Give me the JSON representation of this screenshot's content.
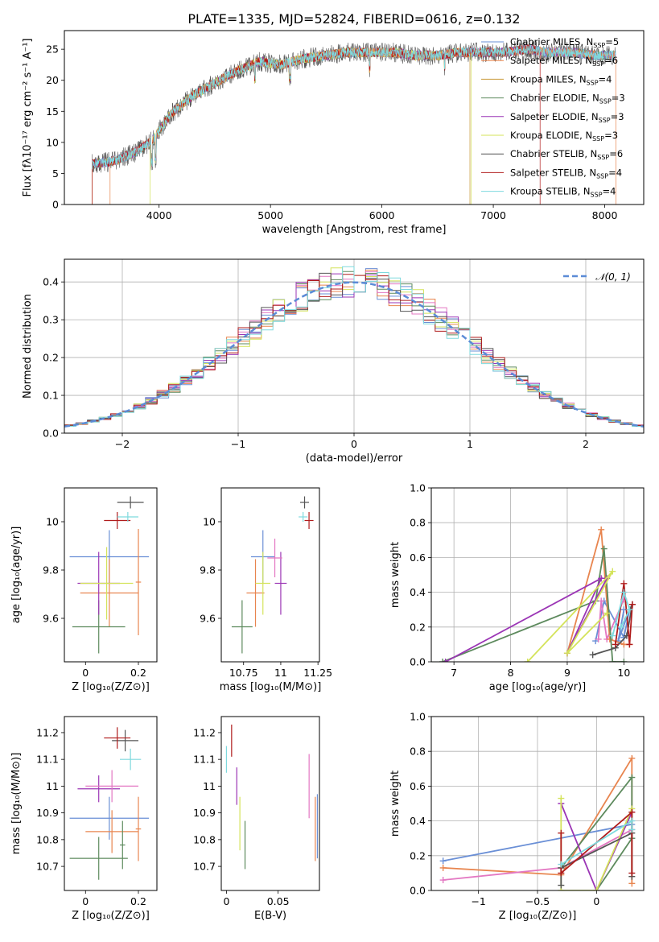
{
  "figure_title": "PLATE=1335, MJD=52824, FIBERID=0616, z=0.132",
  "colors": {
    "grid": "#b0b0b0",
    "ref_curve": "#5b8bd6"
  },
  "series_labels": [
    {
      "name": "Chabrier MILES",
      "n": "5",
      "color": "#6a8fd6"
    },
    {
      "name": "Salpeter MILES",
      "n": "6",
      "color": "#e8854f"
    },
    {
      "name": "Kroupa MILES",
      "n": "4",
      "color": "#c99a3a"
    },
    {
      "name": "Chabrier ELODIE",
      "n": "3",
      "color": "#5d8a5d"
    },
    {
      "name": "Salpeter ELODIE",
      "n": "3",
      "color": "#9b35b5"
    },
    {
      "name": "Kroupa ELODIE",
      "n": "3",
      "color": "#d4e35a"
    },
    {
      "name": "Chabrier STELIB",
      "n": "6",
      "color": "#555555"
    },
    {
      "name": "Salpeter STELIB",
      "n": "4",
      "color": "#b01c1c"
    },
    {
      "name": "Kroupa STELIB",
      "n": "4",
      "color": "#7ed9de"
    }
  ],
  "chart_data": [
    {
      "id": "spectrum",
      "type": "line",
      "xlabel": "wavelength [Angstrom, rest frame]",
      "ylabel": "Flux [fλ10⁻¹⁷ erg cm⁻² s⁻¹ A⁻¹]",
      "xlim": [
        3150,
        8350
      ],
      "ylim": [
        0,
        28
      ],
      "xticks": [
        4000,
        5000,
        6000,
        7000,
        8000
      ],
      "yticks": [
        0,
        5,
        10,
        15,
        20,
        25
      ],
      "legend_position": "top-right",
      "envelope": {
        "x": [
          3400,
          3600,
          3800,
          3950,
          4100,
          4300,
          4500,
          4700,
          4900,
          5100,
          5300,
          5500,
          5700,
          5900,
          6100,
          6300,
          6500,
          6700,
          6900,
          7100,
          7300,
          7500,
          7700,
          7900,
          8100
        ],
        "y": [
          6.5,
          7.0,
          8.5,
          10.5,
          14.5,
          17.5,
          19.5,
          21.5,
          23,
          22.5,
          23.5,
          24,
          24.5,
          24.5,
          24.5,
          24,
          24,
          24.5,
          24.5,
          24.5,
          25,
          24.5,
          24.5,
          24,
          24
        ]
      },
      "fit_ranges": [
        {
          "series": "Salpeter MILES",
          "start": 3560,
          "end": 8100
        },
        {
          "series": "Kroupa ELODIE",
          "start": 3920,
          "end": 6800
        },
        {
          "series": "Salpeter STELIB",
          "start": 3400,
          "end": 7420
        },
        {
          "series": "Kroupa MILES",
          "start": 3400,
          "end": 6790
        }
      ]
    },
    {
      "id": "residual-histogram",
      "type": "histogram",
      "xlabel": "(data-model)/error",
      "ylabel": "Normed distribution",
      "xlim": [
        -2.5,
        2.5
      ],
      "ylim": [
        0,
        0.46
      ],
      "xticks": [
        -2,
        -1,
        0,
        1,
        2
      ],
      "yticks": [
        0.0,
        0.1,
        0.2,
        0.3,
        0.4
      ],
      "bin_width": 0.1,
      "grid": true,
      "reference_label": "𝒩(0, 1)",
      "legend_position": "top-right"
    },
    {
      "id": "age-vs-z",
      "type": "errorbar",
      "xlabel": "Z [log₁₀(Z/Z⊙)]",
      "ylabel": "age  [log₁₀(age/yr)]",
      "xlim": [
        -0.08,
        0.27
      ],
      "ylim": [
        9.42,
        10.14
      ],
      "xticks": [
        0.0,
        0.2
      ],
      "yticks": [
        9.6,
        9.8,
        10.0
      ],
      "points": [
        {
          "x": 0.09,
          "xerr": 0.15,
          "y": 9.855,
          "yerr": 0.11,
          "color": "#6a8fd6"
        },
        {
          "x": 0.09,
          "xerr": 0.11,
          "y": 9.705,
          "yerr": 0.14,
          "color": "#e8854f"
        },
        {
          "x": 0.2,
          "xerr": 0.01,
          "y": 9.75,
          "yerr": 0.22,
          "color": "#e8854f"
        },
        {
          "x": 0.05,
          "xerr": 0.1,
          "y": 9.565,
          "yerr": 0.11,
          "color": "#5d8a5d"
        },
        {
          "x": 0.05,
          "xerr": 0.08,
          "y": 9.745,
          "yerr": 0.13,
          "color": "#9b35b5"
        },
        {
          "x": 0.08,
          "xerr": 0.1,
          "y": 9.745,
          "yerr": 0.15,
          "color": "#d4e35a"
        },
        {
          "x": 0.17,
          "xerr": 0.05,
          "y": 10.08,
          "yerr": 0.025,
          "color": "#555555"
        },
        {
          "x": 0.12,
          "xerr": 0.05,
          "y": 10.005,
          "yerr": 0.035,
          "color": "#b01c1c"
        },
        {
          "x": 0.16,
          "xerr": 0.04,
          "y": 10.02,
          "yerr": 0.02,
          "color": "#7ed9de"
        }
      ]
    },
    {
      "id": "age-vs-mass",
      "type": "errorbar",
      "xlabel": "mass [log₁₀(M/M⊙)]",
      "ylabel": "",
      "xlim": [
        10.6,
        11.26
      ],
      "ylim": [
        9.42,
        10.14
      ],
      "xticks": [
        10.75,
        11.0,
        11.25
      ],
      "yticks": [
        9.6,
        9.8,
        10.0
      ],
      "points": [
        {
          "x": 10.88,
          "xerr": 0.08,
          "y": 9.855,
          "yerr": 0.11,
          "color": "#6a8fd6"
        },
        {
          "x": 10.83,
          "xerr": 0.06,
          "y": 9.705,
          "yerr": 0.14,
          "color": "#e8854f"
        },
        {
          "x": 10.74,
          "xerr": 0.07,
          "y": 9.565,
          "yerr": 0.11,
          "color": "#5d8a5d"
        },
        {
          "x": 11.0,
          "xerr": 0.04,
          "y": 9.745,
          "yerr": 0.13,
          "color": "#9b35b5"
        },
        {
          "x": 10.88,
          "xerr": 0.05,
          "y": 9.745,
          "yerr": 0.13,
          "color": "#d4e35a"
        },
        {
          "x": 10.96,
          "xerr": 0.05,
          "y": 9.85,
          "yerr": 0.08,
          "color": "#e377c2"
        },
        {
          "x": 11.16,
          "xerr": 0.03,
          "y": 10.08,
          "yerr": 0.025,
          "color": "#555555"
        },
        {
          "x": 11.19,
          "xerr": 0.03,
          "y": 10.005,
          "yerr": 0.035,
          "color": "#b01c1c"
        },
        {
          "x": 11.15,
          "xerr": 0.03,
          "y": 10.02,
          "yerr": 0.02,
          "color": "#7ed9de"
        }
      ]
    },
    {
      "id": "weight-vs-age",
      "type": "line",
      "xlabel": "age  [log₁₀(age/yr)]",
      "ylabel": "mass weight",
      "xlim": [
        6.6,
        10.35
      ],
      "ylim": [
        0,
        1.0
      ],
      "xticks": [
        7,
        8,
        9,
        10
      ],
      "yticks": [
        0.0,
        0.2,
        0.4,
        0.6,
        0.8,
        1.0
      ],
      "grid": true,
      "series": [
        {
          "color": "#6a8fd6",
          "x": [
            9.5,
            9.65,
            10.0,
            10.1,
            9.9,
            10.0
          ],
          "y": [
            0.12,
            0.35,
            0.14,
            0.3,
            0.12,
            0.3
          ]
        },
        {
          "color": "#e377c2",
          "x": [
            9.55,
            9.6,
            9.7,
            10.0
          ],
          "y": [
            0.13,
            0.35,
            0.13,
            0.36
          ]
        },
        {
          "color": "#e8854f",
          "x": [
            9.0,
            9.6,
            9.75,
            10.0,
            10.1
          ],
          "y": [
            0.05,
            0.76,
            0.13,
            0.1,
            0.1
          ]
        },
        {
          "color": "#5d8a5d",
          "x": [
            6.8,
            9.5,
            9.65,
            9.8,
            10.0
          ],
          "y": [
            0.0,
            0.35,
            0.65,
            0.0,
            0.0
          ]
        },
        {
          "color": "#9b35b5",
          "x": [
            6.85,
            9.6,
            9.0,
            9.7
          ],
          "y": [
            0.0,
            0.48,
            0.05,
            0.48
          ]
        },
        {
          "color": "#d4e35a",
          "x": [
            8.3,
            9.8,
            9.0,
            9.7
          ],
          "y": [
            0.0,
            0.52,
            0.05,
            0.28
          ]
        },
        {
          "color": "#555555",
          "x": [
            9.45,
            9.85,
            10.05,
            10.15,
            10.1
          ],
          "y": [
            0.04,
            0.08,
            0.15,
            0.33,
            0.3
          ]
        },
        {
          "color": "#b01c1c",
          "x": [
            9.85,
            10.0,
            10.1,
            10.15
          ],
          "y": [
            0.1,
            0.45,
            0.1,
            0.33
          ]
        },
        {
          "color": "#7ed9de",
          "x": [
            9.8,
            10.0,
            10.1,
            9.95
          ],
          "y": [
            0.15,
            0.4,
            0.3,
            0.2
          ]
        }
      ]
    },
    {
      "id": "mass-vs-z",
      "type": "errorbar",
      "xlabel": "Z [log₁₀(Z/Z⊙)]",
      "ylabel": "mass [log₁₀(M/M⊙)]",
      "xlim": [
        -0.08,
        0.27
      ],
      "ylim": [
        10.61,
        11.26
      ],
      "xticks": [
        0.0,
        0.2
      ],
      "yticks": [
        10.7,
        10.8,
        10.9,
        11.0,
        11.1,
        11.2
      ],
      "points": [
        {
          "x": 0.09,
          "xerr": 0.15,
          "y": 10.88,
          "yerr": 0.08,
          "color": "#6a8fd6"
        },
        {
          "x": 0.1,
          "xerr": 0.1,
          "y": 10.83,
          "yerr": 0.08,
          "color": "#e8854f"
        },
        {
          "x": 0.2,
          "xerr": 0.01,
          "y": 10.84,
          "yerr": 0.12,
          "color": "#e8854f"
        },
        {
          "x": 0.05,
          "xerr": 0.11,
          "y": 10.73,
          "yerr": 0.08,
          "color": "#5d8a5d"
        },
        {
          "x": 0.14,
          "xerr": 0.01,
          "y": 10.78,
          "yerr": 0.09,
          "color": "#5d8a5d"
        },
        {
          "x": 0.05,
          "xerr": 0.08,
          "y": 10.99,
          "yerr": 0.05,
          "color": "#9b35b5"
        },
        {
          "x": 0.1,
          "xerr": 0.1,
          "y": 11.0,
          "yerr": 0.06,
          "color": "#e377c2"
        },
        {
          "x": 0.15,
          "xerr": 0.05,
          "y": 11.17,
          "yerr": 0.04,
          "color": "#555555"
        },
        {
          "x": 0.12,
          "xerr": 0.05,
          "y": 11.18,
          "yerr": 0.04,
          "color": "#b01c1c"
        },
        {
          "x": 0.17,
          "xerr": 0.04,
          "y": 11.1,
          "yerr": 0.04,
          "color": "#7ed9de"
        }
      ]
    },
    {
      "id": "mass-vs-ebv",
      "type": "errorbar",
      "xlabel": "E(B-V)",
      "ylabel": "",
      "xlim": [
        -0.005,
        0.09
      ],
      "ylim": [
        10.61,
        11.26
      ],
      "xticks": [
        0.0,
        0.05
      ],
      "yticks": [
        10.7,
        10.8,
        10.9,
        11.0,
        11.1,
        11.2
      ],
      "points": [
        {
          "x": 0.0,
          "y": 11.1,
          "yerr": 0.05,
          "color": "#7ed9de"
        },
        {
          "x": 0.005,
          "y": 11.17,
          "yerr": 0.06,
          "color": "#b01c1c"
        },
        {
          "x": 0.01,
          "y": 11.0,
          "yerr": 0.07,
          "color": "#9b35b5"
        },
        {
          "x": 0.013,
          "y": 10.86,
          "yerr": 0.1,
          "color": "#d4e35a"
        },
        {
          "x": 0.018,
          "y": 10.78,
          "yerr": 0.09,
          "color": "#5d8a5d"
        },
        {
          "x": 0.08,
          "y": 11.0,
          "yerr": 0.12,
          "color": "#e377c2"
        },
        {
          "x": 0.086,
          "y": 10.84,
          "yerr": 0.12,
          "color": "#e8854f"
        },
        {
          "x": 0.088,
          "y": 10.85,
          "yerr": 0.12,
          "color": "#6a8fd6"
        }
      ]
    },
    {
      "id": "weight-vs-z",
      "type": "line",
      "xlabel": "Z [log₁₀(Z/Z⊙)]",
      "ylabel": "mass weight",
      "xlim": [
        -1.4,
        0.4
      ],
      "ylim": [
        0,
        1.0
      ],
      "xticks": [
        -1.0,
        -0.5,
        0.0
      ],
      "yticks": [
        0.0,
        0.2,
        0.4,
        0.6,
        0.8,
        1.0
      ],
      "grid": true,
      "series": [
        {
          "color": "#6a8fd6",
          "x": [
            -1.3,
            0.3,
            0.3
          ],
          "y": [
            0.17,
            0.38,
            0.3
          ]
        },
        {
          "color": "#e8854f",
          "x": [
            -1.3,
            -0.3,
            0.3,
            0.3
          ],
          "y": [
            0.13,
            0.09,
            0.76,
            0.04
          ]
        },
        {
          "color": "#e377c2",
          "x": [
            -1.3,
            -0.3,
            0.3
          ],
          "y": [
            0.06,
            0.13,
            0.35
          ]
        },
        {
          "color": "#5d8a5d",
          "x": [
            -0.3,
            0.3,
            0.3,
            0.0
          ],
          "y": [
            0.13,
            0.65,
            0.3,
            0.0
          ]
        },
        {
          "color": "#9b35b5",
          "x": [
            -0.3,
            0.0,
            0.3
          ],
          "y": [
            0.5,
            0.0,
            0.45
          ]
        },
        {
          "color": "#d4e35a",
          "x": [
            -0.3,
            -0.3,
            0.0,
            0.3
          ],
          "y": [
            0.53,
            0.0,
            0.0,
            0.47
          ]
        },
        {
          "color": "#555555",
          "x": [
            -0.3,
            -0.3,
            0.3,
            0.3
          ],
          "y": [
            0.03,
            0.13,
            0.33,
            0.08
          ]
        },
        {
          "color": "#b01c1c",
          "x": [
            -0.3,
            -0.3,
            0.3,
            0.3
          ],
          "y": [
            0.33,
            0.1,
            0.45,
            0.1
          ]
        },
        {
          "color": "#7ed9de",
          "x": [
            -0.3,
            0.3,
            0.3
          ],
          "y": [
            0.15,
            0.4,
            0.35
          ]
        }
      ]
    }
  ]
}
